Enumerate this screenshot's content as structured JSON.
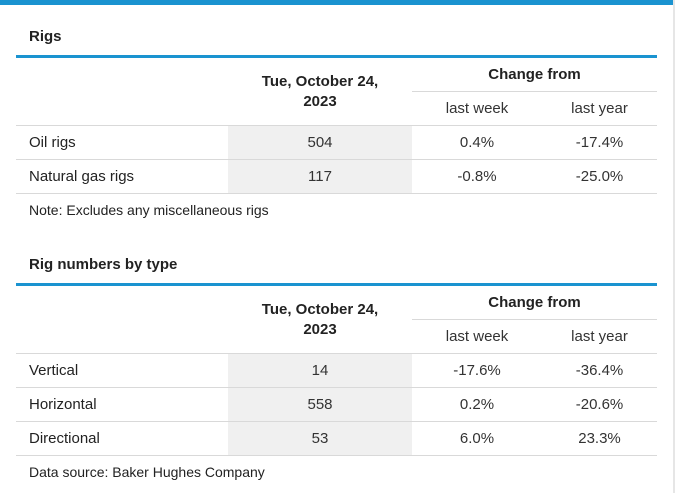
{
  "colors": {
    "accent": "#1a93d0",
    "shaded_column": "#f0f0f0",
    "divider": "#d9d9d9"
  },
  "rigs_table": {
    "title": "Rigs",
    "date_header": "Tue, October 24, 2023",
    "change_from": "Change from",
    "last_week": "last week",
    "last_year": "last year",
    "rows": [
      {
        "label": "Oil rigs",
        "value": "504",
        "week": "0.4%",
        "year": "-17.4%"
      },
      {
        "label": "Natural gas rigs",
        "value": "117",
        "week": "-0.8%",
        "year": "-25.0%"
      }
    ],
    "note": "Note: Excludes any miscellaneous rigs"
  },
  "type_table": {
    "title": "Rig numbers by type",
    "date_header": "Tue, October 24, 2023",
    "change_from": "Change from",
    "last_week": "last week",
    "last_year": "last year",
    "rows": [
      {
        "label": "Vertical",
        "value": "14",
        "week": "-17.6%",
        "year": "-36.4%"
      },
      {
        "label": "Horizontal",
        "value": "558",
        "week": "0.2%",
        "year": "-20.6%"
      },
      {
        "label": "Directional",
        "value": "53",
        "week": "6.0%",
        "year": "23.3%"
      }
    ],
    "note": "Data source: Baker Hughes Company"
  }
}
